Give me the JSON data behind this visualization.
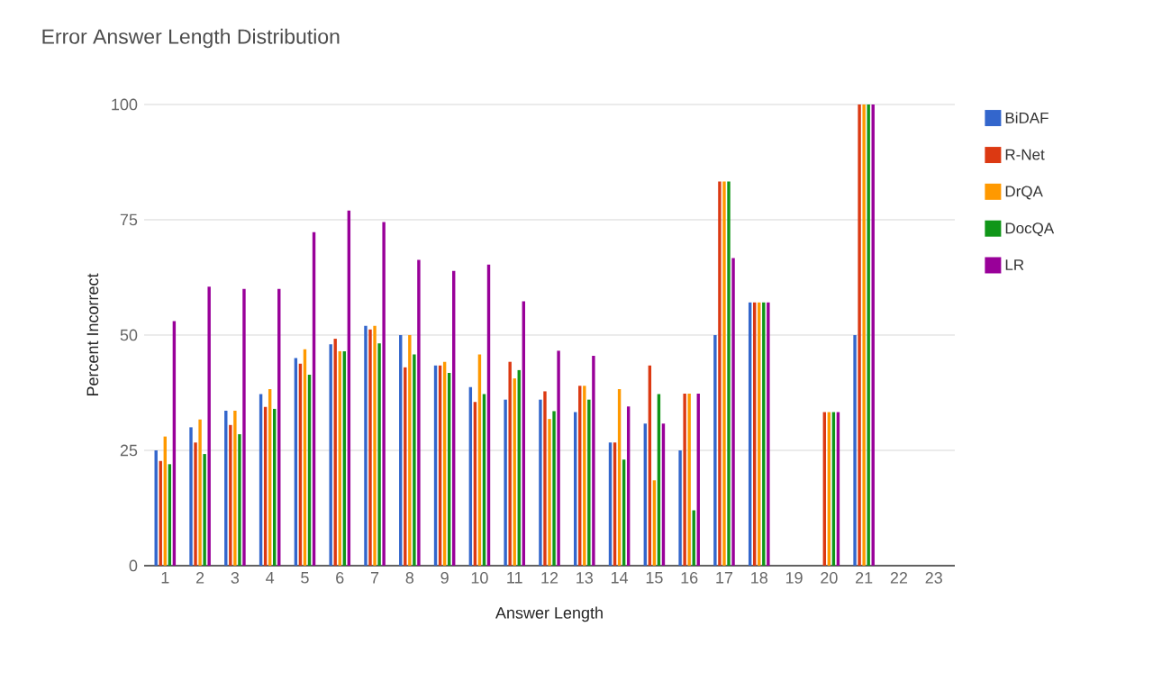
{
  "chart_data": {
    "type": "bar",
    "title": "Error Answer Length Distribution",
    "xlabel": "Answer Length",
    "ylabel": "Percent Incorrect",
    "categories": [
      "1",
      "2",
      "3",
      "4",
      "5",
      "6",
      "7",
      "8",
      "9",
      "10",
      "11",
      "12",
      "13",
      "14",
      "15",
      "16",
      "17",
      "18",
      "19",
      "20",
      "21",
      "22",
      "23"
    ],
    "series": [
      {
        "name": "BiDAF",
        "color": "#3366cc",
        "values": [
          25,
          30,
          33.6,
          37.2,
          45,
          48,
          52,
          50,
          43.4,
          38.7,
          36,
          36,
          33.3,
          26.7,
          30.8,
          25,
          50,
          57.1,
          0,
          0,
          50,
          0,
          0
        ]
      },
      {
        "name": "R-Net",
        "color": "#dc3912",
        "values": [
          22.7,
          26.7,
          30.5,
          34.4,
          43.8,
          49.2,
          51.2,
          43,
          43.4,
          35.5,
          44.2,
          37.8,
          39,
          26.7,
          43.4,
          37.3,
          83.3,
          57.1,
          0,
          33.3,
          100,
          0,
          0
        ]
      },
      {
        "name": "DrQA",
        "color": "#ff9900",
        "values": [
          28,
          31.7,
          33.6,
          38.3,
          46.9,
          46.5,
          52,
          50,
          44.2,
          45.8,
          40.6,
          31.8,
          39,
          38.3,
          18.5,
          37.3,
          83.3,
          57.1,
          0,
          33.3,
          100,
          0,
          0
        ]
      },
      {
        "name": "DocQA",
        "color": "#109618",
        "values": [
          22,
          24.2,
          28.5,
          34,
          41.4,
          46.5,
          48.2,
          45.8,
          41.8,
          37.2,
          42.4,
          33.5,
          36,
          23,
          37.2,
          12,
          83.3,
          57.1,
          0,
          33.3,
          100,
          0,
          0
        ]
      },
      {
        "name": "LR",
        "color": "#990099",
        "values": [
          53,
          60.5,
          60,
          60,
          72.3,
          77,
          74.5,
          66.3,
          63.9,
          65.3,
          57.3,
          46.6,
          45.5,
          34.5,
          30.8,
          37.3,
          66.7,
          57.1,
          0,
          33.3,
          100,
          0,
          0
        ]
      }
    ],
    "ylim": [
      0,
      100
    ],
    "yticks": [
      0,
      25,
      50,
      75,
      100
    ],
    "grid": "y",
    "legend": "right"
  }
}
